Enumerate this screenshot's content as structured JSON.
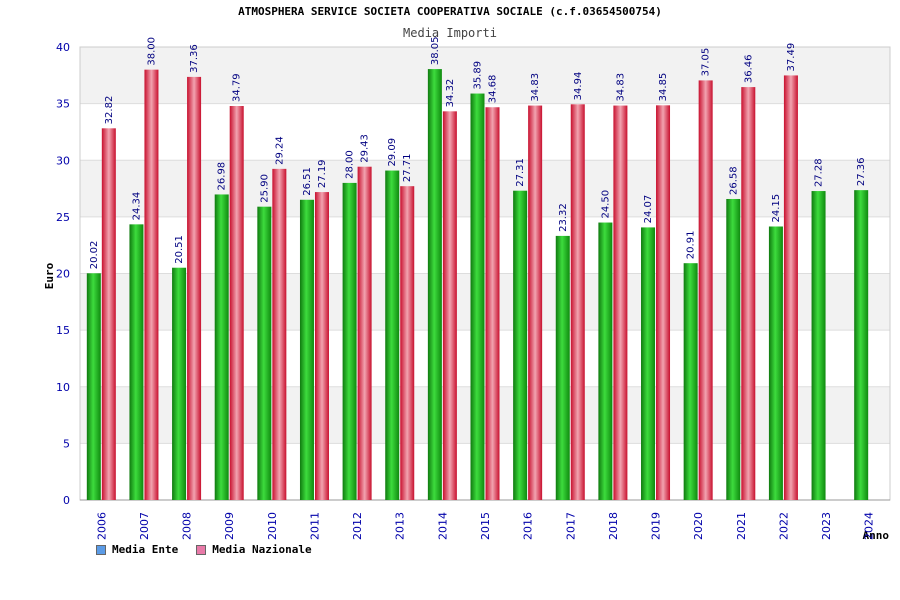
{
  "chart_data": {
    "type": "bar",
    "title": "ATMOSPHERA SERVICE SOCIETA COOPERATIVA SOCIALE (c.f.03654500754)",
    "subtitle": "Media Importi",
    "xlabel": "Anno",
    "ylabel": "Euro",
    "ylim": [
      0,
      40
    ],
    "yticks": [
      0,
      5,
      10,
      15,
      20,
      25,
      30,
      35,
      40
    ],
    "categories": [
      "2006",
      "2007",
      "2008",
      "2009",
      "2010",
      "2011",
      "2012",
      "2013",
      "2014",
      "2015",
      "2016",
      "2017",
      "2018",
      "2019",
      "2020",
      "2021",
      "2022",
      "2023",
      "2024"
    ],
    "series": [
      {
        "name": "Media Ente",
        "color": "#22aa22",
        "legend_color": "#5b9be6",
        "values": [
          20.02,
          24.34,
          20.51,
          26.98,
          25.9,
          26.51,
          28.0,
          29.09,
          38.05,
          35.89,
          27.31,
          23.32,
          24.5,
          24.07,
          20.91,
          26.58,
          24.15,
          27.28,
          27.36
        ],
        "labels": [
          "20.02",
          "24.34",
          "20.51",
          "26.98",
          "25.90",
          "26.51",
          "28.00",
          "29.09",
          "38.05",
          "35.89",
          "27.31",
          "23.32",
          "24.50",
          "24.07",
          "20.91",
          "26.58",
          "24.15",
          "27.28",
          "27.36"
        ]
      },
      {
        "name": "Media Nazionale",
        "color": "#e8434b",
        "legend_color": "#e87aa8",
        "values": [
          32.82,
          38.0,
          37.36,
          34.79,
          29.24,
          27.19,
          29.43,
          27.71,
          34.32,
          34.68,
          34.83,
          34.94,
          34.83,
          34.85,
          37.05,
          36.46,
          37.49,
          null,
          null
        ],
        "labels": [
          "32.82",
          "38.00",
          "37.36",
          "34.79",
          "29.24",
          "27.19",
          "29.43",
          "27.71",
          "34.32",
          "34.68",
          "34.83",
          "34.94",
          "34.83",
          "34.85",
          "37.05",
          "36.46",
          "37.49",
          "",
          ""
        ]
      }
    ],
    "grid": true,
    "legend_position": "bottom-left"
  }
}
